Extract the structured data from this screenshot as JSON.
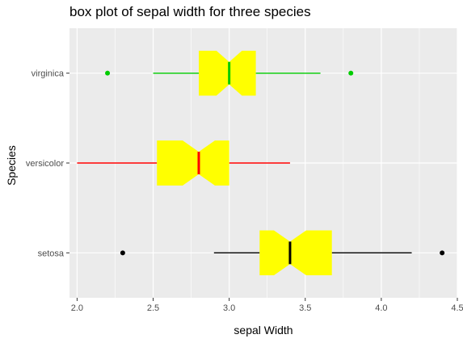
{
  "chart_data": {
    "type": "boxplot",
    "orientation": "horizontal",
    "title": "box plot of sepal width for three species",
    "xlabel": "sepal Width",
    "ylabel": "Species",
    "xlim": [
      1.95,
      4.5
    ],
    "xticks": [
      2.0,
      2.5,
      3.0,
      3.5,
      4.0,
      4.5
    ],
    "xtick_labels": [
      "2.0",
      "2.5",
      "3.0",
      "3.5",
      "4.0",
      "4.5"
    ],
    "grid": true,
    "notched": true,
    "box_fill": "#ffff00",
    "panel_background": "#ebebeb",
    "grid_color": "#ffffff",
    "categories": [
      "setosa",
      "versicolor",
      "virginica"
    ],
    "series": [
      {
        "category": "setosa",
        "color": "#000000",
        "min": 2.9,
        "q1": 3.2,
        "median": 3.4,
        "q3": 3.675,
        "max": 4.2,
        "notch_low": 3.294,
        "notch_high": 3.506,
        "outliers": [
          2.3,
          4.4
        ]
      },
      {
        "category": "versicolor",
        "color": "#ff0000",
        "min": 2.0,
        "q1": 2.525,
        "median": 2.8,
        "q3": 3.0,
        "max": 3.4,
        "notch_low": 2.694,
        "notch_high": 2.906,
        "outliers": []
      },
      {
        "category": "virginica",
        "color": "#00cc00",
        "min": 2.5,
        "q1": 2.8,
        "median": 3.0,
        "q3": 3.175,
        "max": 3.6,
        "notch_low": 2.916,
        "notch_high": 3.084,
        "outliers": [
          2.2,
          3.8
        ]
      }
    ]
  }
}
